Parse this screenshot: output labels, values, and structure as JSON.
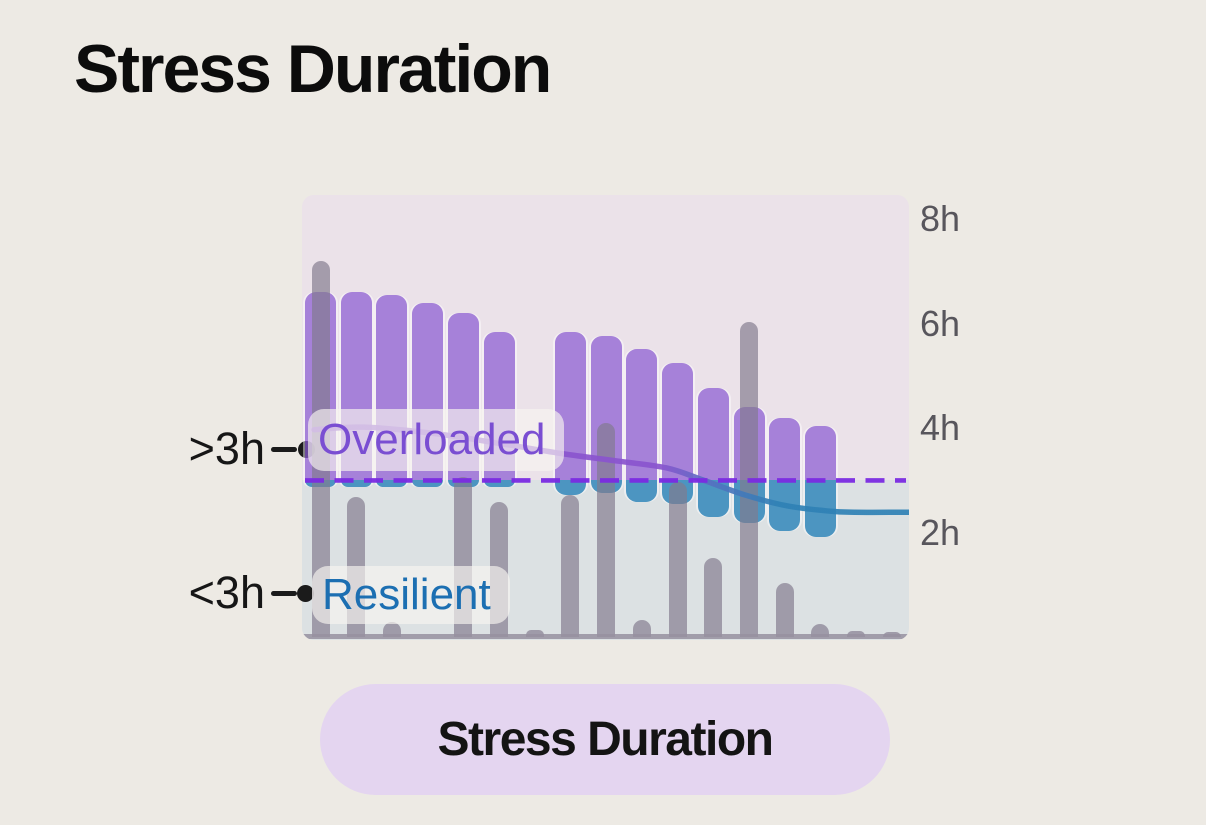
{
  "page": {
    "title": "Stress Duration"
  },
  "pill": {
    "label": "Stress Duration"
  },
  "annotations": {
    "above": {
      "tick_label": ">3h",
      "zone_label": "Overloaded"
    },
    "below": {
      "tick_label": "<3h",
      "zone_label": "Resilient"
    }
  },
  "colors": {
    "page_bg": "#EDEAE4",
    "chart_bg_above_threshold": "#EBE2E9",
    "chart_bg_below_threshold": "#DCE1E3",
    "stress_bar_purple": "rgba(139,92,211,0.72)",
    "below_threshold_bar_blue": "rgba(56,138,188,0.88)",
    "ambient_gray_bar": "rgba(130,122,142,0.68)",
    "threshold_dashed_line": "#7B2BE2",
    "trend_above": "#8A54CE",
    "trend_below": "#2F81B5",
    "baseline": "rgba(150,144,160,0.85)",
    "tick_text": "#58565C",
    "overloaded_text": "#7A4ED2",
    "resilient_text": "#1C6FB2",
    "label_bg": "rgba(248,245,240,0.66)",
    "pill_bg": "#E4D5F0",
    "title_text": "#0C0C0C"
  },
  "chart_data": {
    "type": "bar",
    "title": "Stress Duration",
    "unit": "hours",
    "y_ticks": [
      {
        "label": "8h",
        "hours": 8
      },
      {
        "label": "6h",
        "hours": 6
      },
      {
        "label": "4h",
        "hours": 4
      },
      {
        "label": "2h",
        "hours": 2
      }
    ],
    "ylim": [
      0,
      8.5
    ],
    "threshold_hours": 3,
    "zone_above": {
      "label": "Overloaded",
      "condition": ">3h"
    },
    "zone_below": {
      "label": "Resilient",
      "condition": "<3h"
    },
    "days": [
      {
        "slot": 1,
        "ambient_hours": 7.2,
        "stress_range": {
          "from": 2.87,
          "to": 6.6
        }
      },
      {
        "slot": 2,
        "ambient_hours": 2.68,
        "stress_range": {
          "from": 2.87,
          "to": 6.6
        }
      },
      {
        "slot": 3,
        "ambient_hours": 0.29,
        "stress_range": {
          "from": 2.87,
          "to": 6.55
        }
      },
      {
        "slot": 4,
        "ambient_hours": null,
        "stress_range": {
          "from": 2.87,
          "to": 6.4
        }
      },
      {
        "slot": 5,
        "ambient_hours": 3.06,
        "stress_range": {
          "from": 2.87,
          "to": 6.2
        }
      },
      {
        "slot": 6,
        "ambient_hours": 2.59,
        "stress_range": {
          "from": 2.87,
          "to": 5.85
        }
      },
      {
        "slot": 7,
        "ambient_hours": 0.13,
        "stress_range": null
      },
      {
        "slot": 8,
        "ambient_hours": 2.72,
        "stress_range": {
          "from": 2.72,
          "to": 5.85
        }
      },
      {
        "slot": 9,
        "ambient_hours": 4.1,
        "stress_range": {
          "from": 2.76,
          "to": 5.77
        }
      },
      {
        "slot": 10,
        "ambient_hours": 0.33,
        "stress_range": {
          "from": 2.59,
          "to": 5.52
        }
      },
      {
        "slot": 11,
        "ambient_hours": 2.97,
        "stress_range": {
          "from": 2.55,
          "to": 5.25
        }
      },
      {
        "slot": 12,
        "ambient_hours": 1.51,
        "stress_range": {
          "from": 2.3,
          "to": 4.77
        }
      },
      {
        "slot": 13,
        "ambient_hours": 6.03,
        "stress_range": {
          "from": 2.18,
          "to": 4.4
        }
      },
      {
        "slot": 14,
        "ambient_hours": 1.03,
        "stress_range": {
          "from": 2.03,
          "to": 4.2
        }
      },
      {
        "slot": 15,
        "ambient_hours": 0.25,
        "stress_range": {
          "from": 1.92,
          "to": 4.05
        }
      },
      {
        "slot": 16,
        "ambient_hours": 0.11,
        "stress_range": null
      },
      {
        "slot": 17,
        "ambient_hours": 0.1,
        "stress_range": null
      }
    ],
    "trend_avg_hours": [
      [
        0.02,
        3.97
      ],
      [
        0.1,
        4.02
      ],
      [
        0.21,
        3.91
      ],
      [
        0.33,
        3.7
      ],
      [
        0.43,
        3.51
      ],
      [
        0.52,
        3.37
      ],
      [
        0.6,
        3.24
      ],
      [
        0.66,
        3.01
      ],
      [
        0.73,
        2.72
      ],
      [
        0.8,
        2.51
      ],
      [
        0.87,
        2.41
      ],
      [
        0.91,
        2.39
      ],
      [
        1.0,
        2.39
      ]
    ],
    "legend_position": "right",
    "grid": false
  }
}
